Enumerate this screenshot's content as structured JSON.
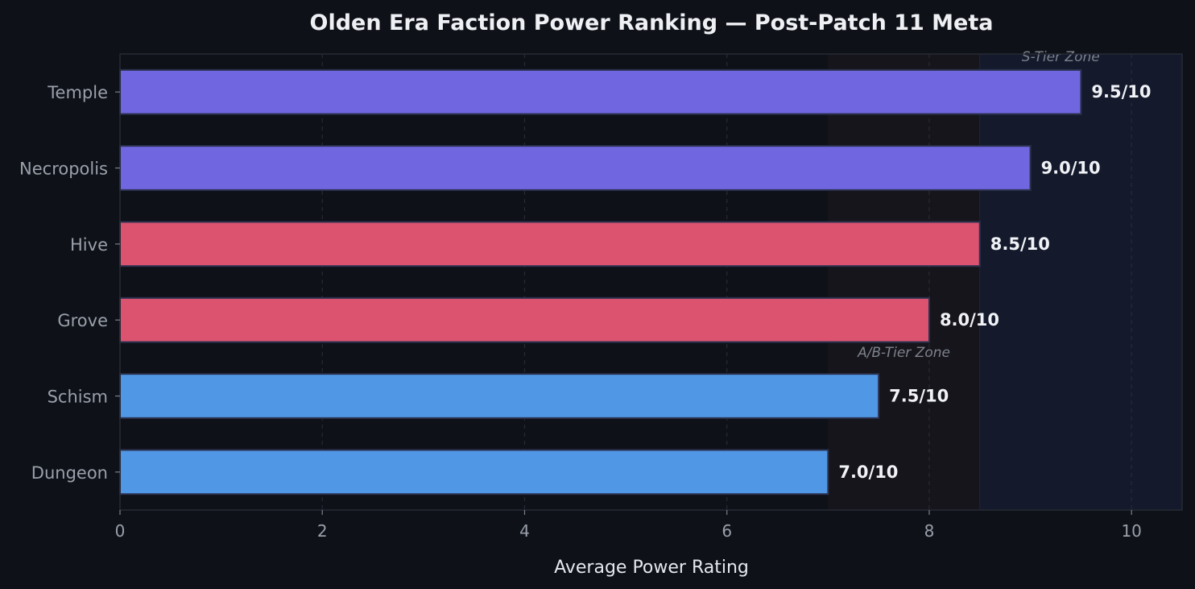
{
  "chart_data": {
    "type": "bar",
    "orientation": "horizontal",
    "title": "Olden Era Faction Power Ranking — Post-Patch 11 Meta",
    "xlabel": "Average Power Rating",
    "ylabel": "",
    "xlim": [
      0,
      10.5
    ],
    "xticks": [
      0,
      2,
      4,
      6,
      8,
      10
    ],
    "grid": "vertical-dashed",
    "categories": [
      "Temple",
      "Necropolis",
      "Hive",
      "Grove",
      "Schism",
      "Dungeon"
    ],
    "values": [
      9.5,
      9.0,
      8.5,
      8.0,
      7.5,
      7.0
    ],
    "value_labels": [
      "9.5/10",
      "9.0/10",
      "8.5/10",
      "8.0/10",
      "7.5/10",
      "7.0/10"
    ],
    "bar_colors": [
      "#7066e0",
      "#7066e0",
      "#dc5370",
      "#dc5370",
      "#5097e6",
      "#5097e6"
    ],
    "zones": [
      {
        "label": "S-Tier Zone",
        "from": 8.5,
        "to": 10.5,
        "color": "#141a2c"
      },
      {
        "label": "A/B-Tier Zone",
        "from": 7.0,
        "to": 8.5,
        "color": "#16151b"
      }
    ]
  }
}
